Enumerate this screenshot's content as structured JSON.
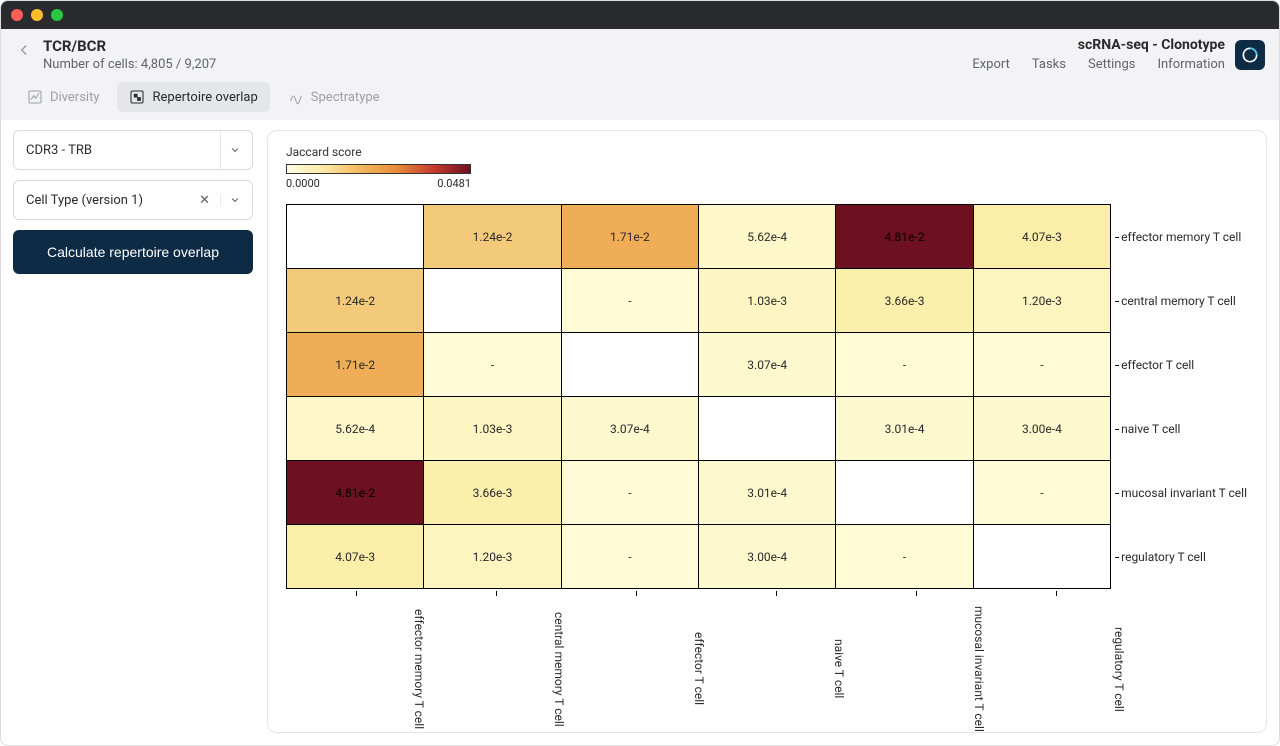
{
  "window": {
    "os": "mac"
  },
  "header": {
    "title": "TCR/BCR",
    "subtitle": "Number of cells: 4,805 / 9,207",
    "breadcrumb": "scRNA-seq - Clonotype",
    "nav": {
      "export": "Export",
      "tasks": "Tasks",
      "settings": "Settings",
      "info": "Information"
    }
  },
  "tabs": {
    "diversity": "Diversity",
    "overlap": "Repertoire overlap",
    "spectratype": "Spectratype",
    "active": "overlap"
  },
  "sidebar": {
    "select1": "CDR3 - TRB",
    "select2": "Cell Type (version 1)",
    "button": "Calculate repertoire overlap"
  },
  "heatmap": {
    "legend_title": "Jaccard score",
    "legend_min": "0.0000",
    "legend_max": "0.0481",
    "scale_max": 0.0481,
    "gradient_stops": [
      "#fffde6",
      "#fde9a6",
      "#f4b95d",
      "#e78b3a",
      "#c43c2e",
      "#6d1020"
    ],
    "labels": [
      "effector memory T cell",
      "central memory T cell",
      "effector T cell",
      "naive T cell",
      "mucosal invariant T cell",
      "regulatory T cell"
    ],
    "rows": [
      [
        {
          "t": "",
          "c": "#ffffff"
        },
        {
          "t": "1.24e-2",
          "c": "#f3c97a"
        },
        {
          "t": "1.71e-2",
          "c": "#eead56"
        },
        {
          "t": "5.62e-4",
          "c": "#fdf7c9"
        },
        {
          "t": "4.81e-2",
          "c": "#6d1020"
        },
        {
          "t": "4.07e-3",
          "c": "#fbeea9"
        }
      ],
      [
        {
          "t": "1.24e-2",
          "c": "#f3c97a"
        },
        {
          "t": "",
          "c": "#ffffff"
        },
        {
          "t": "-",
          "c": "#fefbd6"
        },
        {
          "t": "1.03e-3",
          "c": "#fdf5c2"
        },
        {
          "t": "3.66e-3",
          "c": "#fbefac"
        },
        {
          "t": "1.20e-3",
          "c": "#fdf5c0"
        }
      ],
      [
        {
          "t": "1.71e-2",
          "c": "#eead56"
        },
        {
          "t": "-",
          "c": "#fefbd6"
        },
        {
          "t": "",
          "c": "#ffffff"
        },
        {
          "t": "3.07e-4",
          "c": "#fdf9ce"
        },
        {
          "t": "-",
          "c": "#fefbd6"
        },
        {
          "t": "-",
          "c": "#fefbd6"
        }
      ],
      [
        {
          "t": "5.62e-4",
          "c": "#fdf7c9"
        },
        {
          "t": "1.03e-3",
          "c": "#fdf5c2"
        },
        {
          "t": "3.07e-4",
          "c": "#fdf9ce"
        },
        {
          "t": "",
          "c": "#ffffff"
        },
        {
          "t": "3.01e-4",
          "c": "#fdf9ce"
        },
        {
          "t": "3.00e-4",
          "c": "#fdf9ce"
        }
      ],
      [
        {
          "t": "4.81e-2",
          "c": "#6d1020"
        },
        {
          "t": "3.66e-3",
          "c": "#fbefac"
        },
        {
          "t": "-",
          "c": "#fefbd6"
        },
        {
          "t": "3.01e-4",
          "c": "#fdf9ce"
        },
        {
          "t": "",
          "c": "#ffffff"
        },
        {
          "t": "-",
          "c": "#fefbd6"
        }
      ],
      [
        {
          "t": "4.07e-3",
          "c": "#fbeea9"
        },
        {
          "t": "1.20e-3",
          "c": "#fdf5c0"
        },
        {
          "t": "-",
          "c": "#fefbd6"
        },
        {
          "t": "3.00e-4",
          "c": "#fdf9ce"
        },
        {
          "t": "-",
          "c": "#fefbd6"
        },
        {
          "t": "",
          "c": "#ffffff"
        }
      ]
    ]
  }
}
